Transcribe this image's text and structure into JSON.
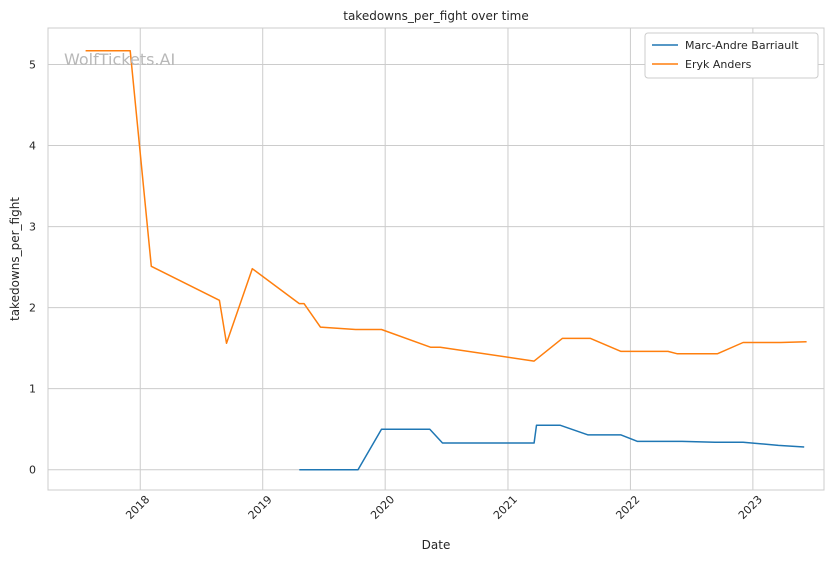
{
  "chart_data": {
    "type": "line",
    "title": "takedowns_per_fight over time",
    "xlabel": "Date",
    "ylabel": "takedowns_per_fight",
    "watermark": "WolfTickets.AI",
    "xlim": [
      "2017-04-01",
      "2023-08-01"
    ],
    "ylim": [
      -0.25,
      5.45
    ],
    "x_ticks": [
      {
        "date": "2018-01-01",
        "label": "2018"
      },
      {
        "date": "2019-01-01",
        "label": "2019"
      },
      {
        "date": "2020-01-01",
        "label": "2020"
      },
      {
        "date": "2021-01-01",
        "label": "2021"
      },
      {
        "date": "2022-01-01",
        "label": "2022"
      },
      {
        "date": "2023-01-01",
        "label": "2023"
      }
    ],
    "y_ticks": [
      0,
      1,
      2,
      3,
      4,
      5
    ],
    "grid": true,
    "legend_position": "top-right",
    "series": [
      {
        "name": "Marc-Andre Barriault",
        "color": "#1f77b4",
        "points": [
          [
            "2019-04-20",
            0.0
          ],
          [
            "2019-10-12",
            0.0
          ],
          [
            "2019-12-21",
            0.5
          ],
          [
            "2020-05-13",
            0.5
          ],
          [
            "2020-06-20",
            0.33
          ],
          [
            "2021-03-20",
            0.33
          ],
          [
            "2021-03-27",
            0.55
          ],
          [
            "2021-06-05",
            0.55
          ],
          [
            "2021-08-28",
            0.43
          ],
          [
            "2021-12-04",
            0.43
          ],
          [
            "2022-01-22",
            0.35
          ],
          [
            "2022-06-04",
            0.35
          ],
          [
            "2022-09-10",
            0.34
          ],
          [
            "2022-12-03",
            0.34
          ],
          [
            "2023-03-18",
            0.3
          ],
          [
            "2023-06-03",
            0.28
          ]
        ]
      },
      {
        "name": "Eryk Anders",
        "color": "#ff7f0e",
        "points": [
          [
            "2017-07-22",
            5.17
          ],
          [
            "2017-12-02",
            5.17
          ],
          [
            "2018-02-03",
            2.51
          ],
          [
            "2018-08-25",
            2.09
          ],
          [
            "2018-09-15",
            1.56
          ],
          [
            "2018-12-01",
            2.48
          ],
          [
            "2019-04-20",
            2.05
          ],
          [
            "2019-05-04",
            2.05
          ],
          [
            "2019-06-22",
            1.76
          ],
          [
            "2019-10-05",
            1.73
          ],
          [
            "2019-12-21",
            1.73
          ],
          [
            "2020-05-16",
            1.51
          ],
          [
            "2020-06-13",
            1.51
          ],
          [
            "2021-03-20",
            1.34
          ],
          [
            "2021-06-12",
            1.62
          ],
          [
            "2021-09-04",
            1.62
          ],
          [
            "2021-12-04",
            1.46
          ],
          [
            "2022-04-23",
            1.46
          ],
          [
            "2022-05-21",
            1.43
          ],
          [
            "2022-09-17",
            1.43
          ],
          [
            "2022-12-03",
            1.57
          ],
          [
            "2023-03-25",
            1.57
          ],
          [
            "2023-06-10",
            1.58
          ]
        ]
      }
    ]
  }
}
